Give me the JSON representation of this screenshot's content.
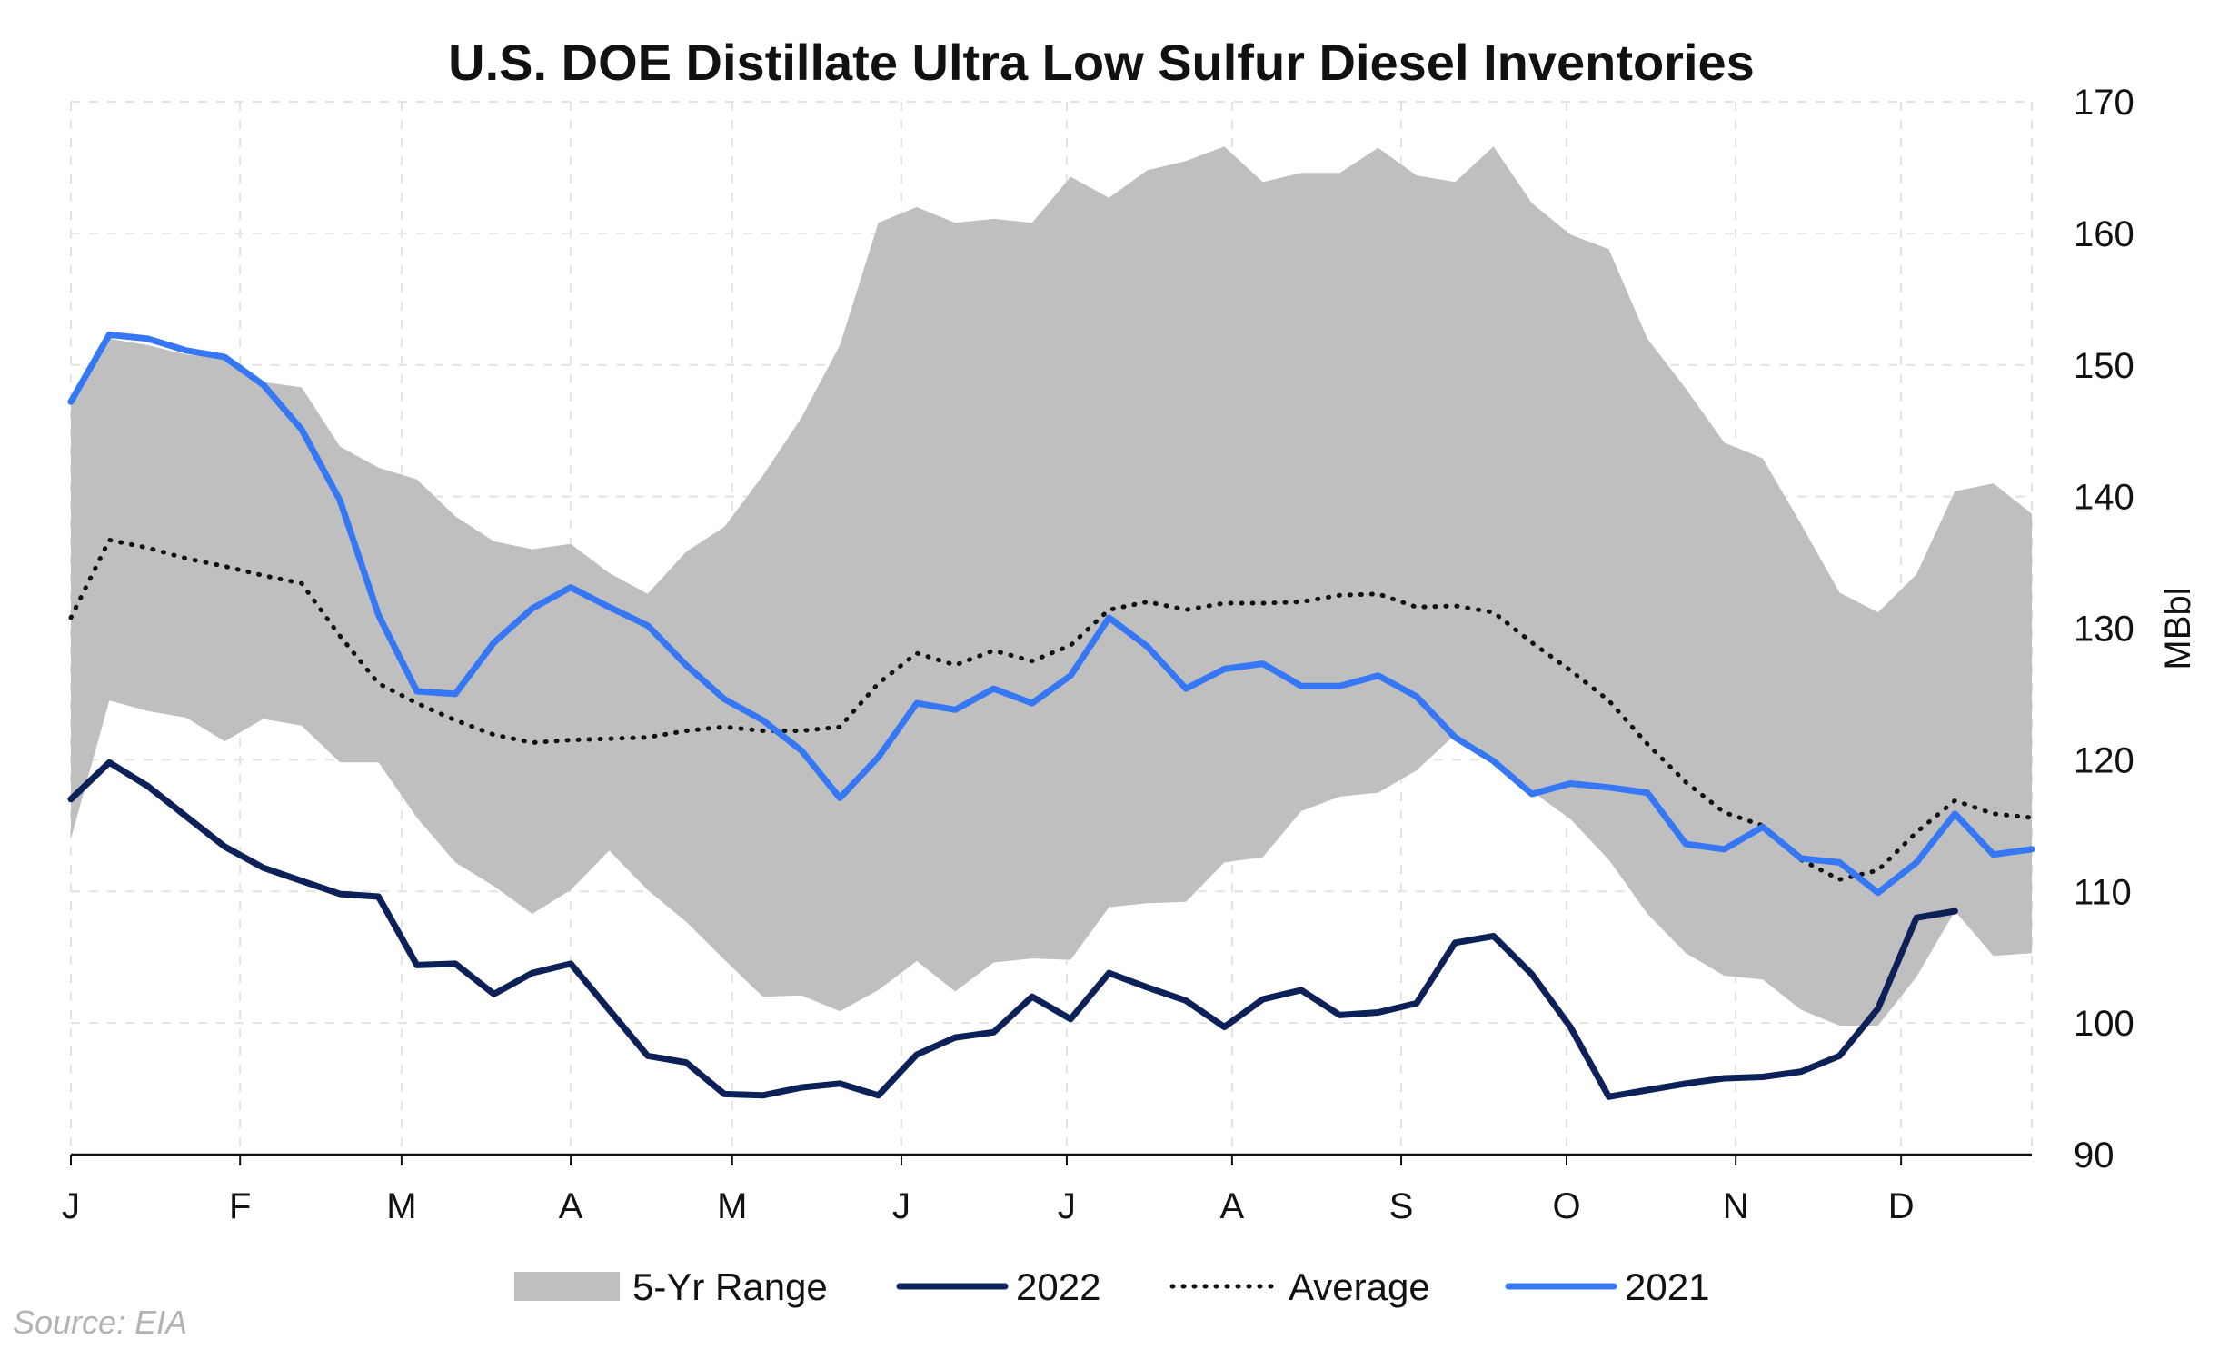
{
  "chart_data": {
    "type": "line",
    "title": "U.S. DOE Distillate Ultra Low Sulfur Diesel Inventories",
    "ylabel": "MBbl",
    "xlabel": "",
    "source": "Source: EIA",
    "y_axis_side": "right",
    "ylim": [
      90,
      170
    ],
    "y_ticks": [
      90,
      100,
      110,
      120,
      130,
      140,
      150,
      160,
      170
    ],
    "x_tick_labels": [
      "J",
      "F",
      "M",
      "A",
      "M",
      "J",
      "J",
      "A",
      "S",
      "O",
      "N",
      "D"
    ],
    "x_tick_weeks": [
      1,
      5.4,
      9.6,
      14.0,
      18.2,
      22.6,
      26.9,
      31.2,
      35.6,
      39.9,
      44.3,
      48.6
    ],
    "x_range_weeks": [
      1,
      52
    ],
    "grid": true,
    "legend_position": "bottom",
    "colors": {
      "range": "#bfbfbf",
      "y2022": "#0d2159",
      "average": "#111111",
      "y2021": "#3577f5"
    },
    "weeks": [
      1,
      2,
      3,
      4,
      5,
      6,
      7,
      8,
      9,
      10,
      11,
      12,
      13,
      14,
      15,
      16,
      17,
      18,
      19,
      20,
      21,
      22,
      23,
      24,
      25,
      26,
      27,
      28,
      29,
      30,
      31,
      32,
      33,
      34,
      35,
      36,
      37,
      38,
      39,
      40,
      41,
      42,
      43,
      44,
      45,
      46,
      47,
      48,
      49,
      50,
      51,
      52
    ],
    "series": [
      {
        "name": "5-Yr Range",
        "kind": "band",
        "high": [
          147.5,
          152.0,
          151.5,
          150.8,
          150.5,
          148.7,
          148.3,
          143.8,
          142.2,
          141.3,
          138.5,
          136.6,
          136.0,
          136.4,
          134.2,
          132.6,
          135.8,
          137.7,
          141.6,
          146.0,
          151.5,
          160.8,
          162.0,
          160.8,
          161.1,
          160.8,
          164.3,
          162.7,
          164.8,
          165.5,
          166.6,
          163.9,
          164.6,
          164.6,
          166.5,
          164.4,
          163.9,
          166.6,
          162.3,
          159.9,
          158.8,
          152.0,
          148.2,
          144.1,
          142.9,
          137.9,
          132.7,
          131.2,
          134.1,
          140.4,
          141.0,
          138.7
        ],
        "low": [
          114.0,
          124.5,
          123.7,
          123.2,
          121.4,
          123.1,
          122.6,
          119.8,
          119.8,
          115.6,
          112.2,
          110.4,
          108.3,
          110.1,
          113.1,
          110.1,
          107.7,
          104.8,
          102.0,
          102.1,
          100.9,
          102.5,
          104.7,
          102.4,
          104.6,
          104.9,
          104.8,
          108.8,
          109.1,
          109.2,
          112.2,
          112.6,
          116.1,
          117.2,
          117.5,
          119.2,
          121.9,
          120.1,
          117.6,
          115.5,
          112.4,
          108.3,
          105.3,
          103.6,
          103.3,
          101.0,
          99.8,
          99.8,
          103.5,
          108.5,
          105.1,
          105.3
        ]
      },
      {
        "name": "2022",
        "kind": "line",
        "values": [
          117.0,
          119.8,
          118.0,
          115.7,
          113.4,
          111.8,
          110.8,
          109.8,
          109.6,
          104.4,
          104.5,
          102.2,
          103.8,
          104.5,
          101.0,
          97.5,
          97.0,
          94.6,
          94.5,
          95.1,
          95.4,
          94.5,
          97.6,
          98.9,
          99.3,
          102.0,
          100.3,
          103.8,
          102.7,
          101.7,
          99.7,
          101.8,
          102.5,
          100.6,
          100.8,
          101.5,
          106.1,
          106.6,
          103.7,
          99.7,
          94.4,
          94.9,
          95.4,
          95.8,
          95.9,
          96.3,
          97.5,
          101.1,
          108.0,
          108.5
        ],
        "dashed": false
      },
      {
        "name": "Average",
        "kind": "line",
        "values": [
          130.8,
          136.7,
          136.1,
          135.3,
          134.7,
          134.0,
          133.4,
          129.4,
          125.8,
          124.3,
          123.0,
          121.9,
          121.3,
          121.5,
          121.6,
          121.7,
          122.2,
          122.5,
          122.2,
          122.2,
          122.5,
          125.8,
          128.1,
          127.2,
          128.3,
          127.5,
          128.7,
          131.4,
          132.0,
          131.4,
          131.9,
          131.9,
          132.0,
          132.5,
          132.6,
          131.6,
          131.7,
          131.2,
          128.9,
          126.8,
          124.5,
          121.2,
          118.3,
          116.0,
          115.0,
          112.4,
          110.9,
          111.6,
          114.5,
          116.9,
          115.9,
          115.6
        ],
        "dashed": true
      },
      {
        "name": "2021",
        "kind": "line",
        "values": [
          147.2,
          152.3,
          152.0,
          151.1,
          150.6,
          148.5,
          145.1,
          139.7,
          131.0,
          125.2,
          125.0,
          128.9,
          131.5,
          133.1,
          131.6,
          130.2,
          127.2,
          124.6,
          123.0,
          120.7,
          117.1,
          120.2,
          124.3,
          123.8,
          125.4,
          124.3,
          126.4,
          130.8,
          128.6,
          125.4,
          126.9,
          127.3,
          125.6,
          125.6,
          126.4,
          124.8,
          121.7,
          119.9,
          117.4,
          118.2,
          117.9,
          117.5,
          113.6,
          113.2,
          114.9,
          112.5,
          112.2,
          109.9,
          112.2,
          115.9,
          112.8,
          113.2
        ],
        "dashed": false
      }
    ]
  }
}
